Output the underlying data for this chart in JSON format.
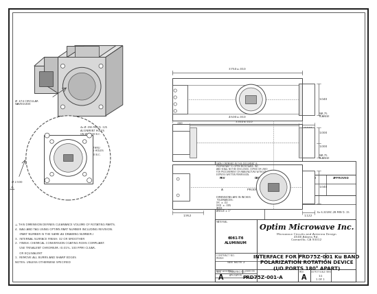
{
  "bg_color": "#ffffff",
  "border_color": "#333333",
  "line_color": "#444444",
  "company": "Optim Microwave Inc.",
  "part_number": "PRD75Z-001-A",
  "size": "A",
  "revision": "A",
  "material_line1": "6061-T6",
  "material_line2": "ALUMINUM",
  "rev_block_text": "PRODUCTION RELEASE",
  "title_line1": "INTERFACE FOR PRD75Z-001 Ku BAND",
  "title_line2": "POLARIZATION ROTATION DEVICE",
  "title_line3": "(I/O PORTS 180° APART)",
  "microwave_sub1": "Microwave Circuits and Antenna Design",
  "microwave_sub2": "4508 Adams Rd.",
  "microwave_sub3": "Camarillo, CA 93012",
  "prop_text": [
    "DATA CONTAINED IN THIS DOCUMENT IS",
    "PROPRIETARY TO OPTIM MICROWAVE, INC.",
    "AND SHALL NOT BE DISCLOSED, COPIED OR USED",
    "FOR PROCUREMENT OR MANUFACTURE WITHOUT",
    "EXPRESS WRITTEN PERMISSION."
  ],
  "tol_lines": [
    "DIMENSIONS ARE IN INCHES",
    "TOLERANCES:",
    "XX  ± .02",
    "XXX  ± .005",
    "XXXX",
    "ANGLE ± 1°"
  ],
  "notes": [
    "⚠ THIS DIMENSION DEFINES CLEARANCE VOLUME OF ROTATING PARTS.",
    "4.  BAG AND TAG USING OPTIMS PART NUMBER INCLUDING REVISION.",
    "     (PART NUMBER IS THE SAME AS DRAWING NUMBER.)",
    "3.  INTERNAL SURFACE FINISH: 32 OR SMOOTHER",
    "2.  FINISH: CHEMICAL CONVERSION COATING ROHS COMPLIANT.",
    "     USE TRIVALENT CHROMIUM, (0.01%, 100 PPM) CLEAR,",
    "     OR EQUIVALENT",
    "1.  REMOVE ALL BURRS AND SHARP EDGES",
    "NOTES: UNLESS OTHERWISE SPECIFIED"
  ],
  "dim_top": "3.750±.010",
  "dim_mid1": "4.500±.010",
  "dim_mid2": "3.350±.010",
  "dim_1040a": "1.040",
  "dim_1040b": "1.040",
  "dim_1122a": "1.122",
  "dim_1122b": "1.122",
  "dim_160": ".160",
  "dim_1000a": "1.000",
  "dim_1000b": "1.000",
  "dim_1952": "1.952",
  "dim_screw": "6x 6-32UNC-2B MIN ∅ .15",
  "dim_wr75a": "WR-75\nFLANGE",
  "dim_wr75b": "WR-75\nFLANGE",
  "ann_circ_wg": "Ø .674 CIRCULAR\nWAVEGUIDE",
  "ann_align": "4x Ø .096 MIN ∅ .125\nALIGNMENT HOLES\nON Ø 1.500 B.C.",
  "ann_mount": "4x Ø .144 THRU\nMOUNTING HOLES\nON Ø 1.500 B.C.",
  "ann_diam": "Ø 2.500"
}
